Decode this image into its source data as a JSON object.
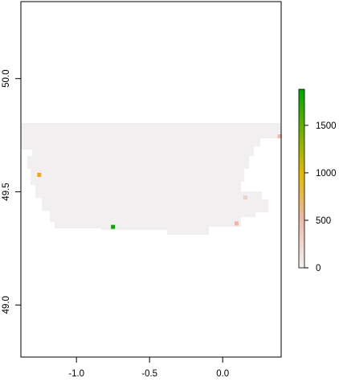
{
  "map": {
    "x_axis": {
      "ticks": [
        {
          "value": -1.0,
          "label": "-1.0"
        },
        {
          "value": -0.5,
          "label": "-0.5"
        },
        {
          "value": 0.0,
          "label": "0.0"
        }
      ]
    },
    "y_axis": {
      "ticks": [
        {
          "value": 50.0,
          "label": "50.0"
        },
        {
          "value": 49.5,
          "label": "49.5"
        },
        {
          "value": 49.0,
          "label": "49.0"
        }
      ]
    },
    "extent": {
      "lon": [
        -1.38,
        0.4
      ],
      "lat": [
        48.77,
        50.34
      ]
    },
    "base_fill": "#f1efef",
    "highlights": [
      {
        "lon": 0.39,
        "lat": 49.745,
        "value": 280,
        "color": "#f0b6a6"
      },
      {
        "lon": -1.255,
        "lat": 49.575,
        "value": 1050,
        "color": "#f2a51e"
      },
      {
        "lon": 0.155,
        "lat": 49.475,
        "value": 140,
        "color": "#f2cdc6"
      },
      {
        "lon": 0.095,
        "lat": 49.36,
        "value": 330,
        "color": "#efb5a5"
      },
      {
        "lon": -0.75,
        "lat": 49.345,
        "value": 1850,
        "color": "#0da10d"
      }
    ]
  },
  "legend": {
    "ticks": [
      {
        "value": 0,
        "label": "0"
      },
      {
        "value": 500,
        "label": "500"
      },
      {
        "value": 1000,
        "label": "1000"
      },
      {
        "value": 1500,
        "label": "1500"
      }
    ],
    "max": 1880,
    "stops": [
      {
        "offset": 0.0,
        "color": "#f2f2f2"
      },
      {
        "offset": 0.28,
        "color": "#edb8a8"
      },
      {
        "offset": 0.53,
        "color": "#e3ba00"
      },
      {
        "offset": 1.0,
        "color": "#00a600"
      }
    ]
  }
}
